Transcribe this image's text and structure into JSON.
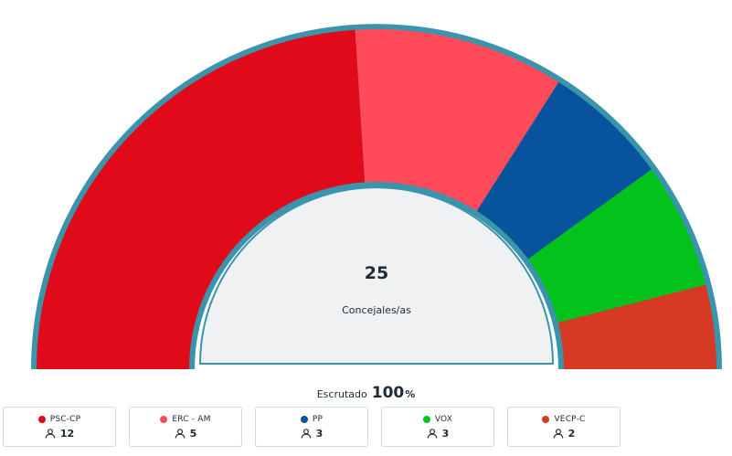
{
  "chart_data": {
    "type": "pie",
    "subtype": "hemicycle",
    "total_label": "25",
    "center_label": "Concejales/as",
    "categories": [
      "PSC-CP",
      "ERC - AM",
      "PP",
      "VOX",
      "VECP-C"
    ],
    "values": [
      12,
      5,
      3,
      3,
      2
    ],
    "colors": [
      "#e10a1a",
      "#ff4b5a",
      "#08539e",
      "#04c21c",
      "#d73a24"
    ],
    "ring_color": "#3a94ab",
    "inner_fill": "#eff1f3"
  },
  "scrutiny": {
    "label": "Escrutado",
    "value": "100",
    "unit": "%"
  }
}
